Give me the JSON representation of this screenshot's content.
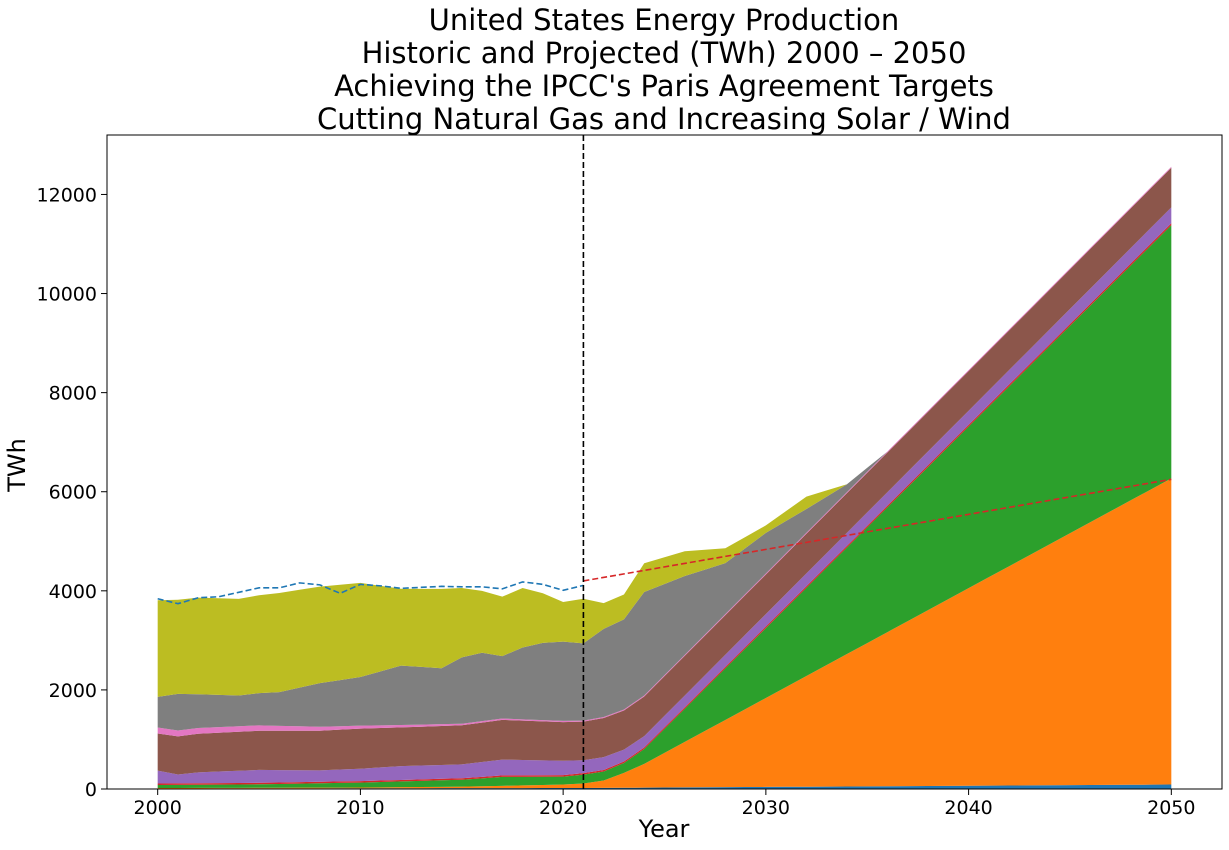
{
  "chart_data": {
    "type": "area",
    "title_lines": [
      "United States Energy Production",
      "Historic and Projected (TWh) 2000 – 2050",
      "Achieving the IPCC's Paris Agreement Targets",
      "Cutting Natural Gas and Increasing Solar / Wind"
    ],
    "xlabel": "Year",
    "ylabel": "TWh",
    "xlim": [
      1997.5,
      2052.5
    ],
    "ylim": [
      0,
      13200
    ],
    "xticks": [
      2000,
      2010,
      2020,
      2030,
      2040,
      2050
    ],
    "yticks": [
      0,
      2000,
      4000,
      6000,
      8000,
      10000,
      12000
    ],
    "grid": false,
    "legend": "none",
    "vline_x": 2021,
    "stacked_series": [
      {
        "color": "#1f77b4",
        "points": [
          [
            2000,
            10
          ],
          [
            2021,
            20
          ],
          [
            2050,
            90
          ]
        ]
      },
      {
        "color": "#ff7f0e",
        "points": [
          [
            2000,
            10
          ],
          [
            2010,
            15
          ],
          [
            2015,
            30
          ],
          [
            2020,
            70
          ],
          [
            2021,
            90
          ],
          [
            2022,
            150
          ],
          [
            2023,
            300
          ],
          [
            2024,
            480
          ],
          [
            2050,
            6180
          ]
        ]
      },
      {
        "color": "#2ca02c",
        "points": [
          [
            2000,
            60
          ],
          [
            2005,
            70
          ],
          [
            2010,
            100
          ],
          [
            2015,
            140
          ],
          [
            2017,
            180
          ],
          [
            2020,
            160
          ],
          [
            2021,
            180
          ],
          [
            2022,
            180
          ],
          [
            2023,
            200
          ],
          [
            2024,
            300
          ],
          [
            2050,
            5110
          ]
        ]
      },
      {
        "color": "#d62728",
        "points": [
          [
            2000,
            30
          ],
          [
            2010,
            30
          ],
          [
            2020,
            30
          ],
          [
            2021,
            30
          ],
          [
            2024,
            30
          ],
          [
            2050,
            40
          ]
        ]
      },
      {
        "color": "#9467bd",
        "points": [
          [
            2000,
            260
          ],
          [
            2001,
            180
          ],
          [
            2002,
            220
          ],
          [
            2005,
            260
          ],
          [
            2008,
            230
          ],
          [
            2010,
            250
          ],
          [
            2012,
            280
          ],
          [
            2015,
            280
          ],
          [
            2017,
            320
          ],
          [
            2020,
            290
          ],
          [
            2021,
            260
          ],
          [
            2022,
            260
          ],
          [
            2023,
            240
          ],
          [
            2024,
            230
          ],
          [
            2050,
            320
          ]
        ]
      },
      {
        "color": "#8c564b",
        "points": [
          [
            2000,
            750
          ],
          [
            2001,
            770
          ],
          [
            2002,
            780
          ],
          [
            2005,
            790
          ],
          [
            2008,
            800
          ],
          [
            2010,
            810
          ],
          [
            2012,
            780
          ],
          [
            2015,
            790
          ],
          [
            2017,
            800
          ],
          [
            2020,
            780
          ],
          [
            2021,
            780
          ],
          [
            2022,
            790
          ],
          [
            2023,
            790
          ],
          [
            2024,
            800
          ],
          [
            2050,
            800
          ]
        ]
      },
      {
        "color": "#e377c2",
        "points": [
          [
            2000,
            120
          ],
          [
            2005,
            110
          ],
          [
            2010,
            60
          ],
          [
            2015,
            30
          ],
          [
            2020,
            25
          ],
          [
            2021,
            20
          ],
          [
            2024,
            20
          ],
          [
            2050,
            20
          ]
        ]
      },
      {
        "color": "#7f7f7f",
        "points": [
          [
            2000,
            620
          ],
          [
            2001,
            740
          ],
          [
            2002,
            680
          ],
          [
            2004,
            620
          ],
          [
            2006,
            680
          ],
          [
            2008,
            880
          ],
          [
            2010,
            980
          ],
          [
            2012,
            1200
          ],
          [
            2014,
            1130
          ],
          [
            2015,
            1340
          ],
          [
            2016,
            1380
          ],
          [
            2017,
            1260
          ],
          [
            2018,
            1450
          ],
          [
            2019,
            1560
          ],
          [
            2020,
            1600
          ],
          [
            2021,
            1560
          ],
          [
            2022,
            1780
          ],
          [
            2023,
            1820
          ],
          [
            2024,
            2090
          ],
          [
            2026,
            1590
          ],
          [
            2028,
            1030
          ],
          [
            2030,
            820
          ],
          [
            2032,
            480
          ],
          [
            2034,
            160
          ],
          [
            2036,
            0
          ],
          [
            2050,
            0
          ]
        ]
      },
      {
        "color": "#bcbd22",
        "points": [
          [
            2000,
            1950
          ],
          [
            2001,
            1900
          ],
          [
            2002,
            1950
          ],
          [
            2004,
            1950
          ],
          [
            2006,
            2000
          ],
          [
            2008,
            1950
          ],
          [
            2010,
            1900
          ],
          [
            2012,
            1550
          ],
          [
            2014,
            1600
          ],
          [
            2015,
            1400
          ],
          [
            2016,
            1250
          ],
          [
            2017,
            1200
          ],
          [
            2018,
            1200
          ],
          [
            2019,
            1000
          ],
          [
            2020,
            800
          ],
          [
            2021,
            900
          ],
          [
            2022,
            520
          ],
          [
            2023,
            500
          ],
          [
            2024,
            580
          ],
          [
            2026,
            500
          ],
          [
            2028,
            300
          ],
          [
            2030,
            150
          ],
          [
            2032,
            250
          ],
          [
            2034,
            0
          ],
          [
            2050,
            0
          ]
        ]
      },
      {
        "color": "#17becf",
        "points": [
          [
            2000,
            0
          ],
          [
            2050,
            0
          ]
        ]
      }
    ],
    "total_line": {
      "color": "#1f77b4",
      "points": [
        [
          2000,
          3840
        ],
        [
          2001,
          3740
        ],
        [
          2002,
          3860
        ],
        [
          2003,
          3880
        ],
        [
          2004,
          3970
        ],
        [
          2005,
          4060
        ],
        [
          2006,
          4060
        ],
        [
          2007,
          4160
        ],
        [
          2008,
          4120
        ],
        [
          2009,
          3950
        ],
        [
          2010,
          4130
        ],
        [
          2011,
          4100
        ],
        [
          2012,
          4050
        ],
        [
          2013,
          4070
        ],
        [
          2014,
          4090
        ],
        [
          2015,
          4080
        ],
        [
          2016,
          4080
        ],
        [
          2017,
          4040
        ],
        [
          2018,
          4180
        ],
        [
          2019,
          4130
        ],
        [
          2020,
          4010
        ],
        [
          2021,
          4110
        ]
      ]
    },
    "target_line": {
      "color": "#d62728",
      "points": [
        [
          2021,
          4200
        ],
        [
          2050,
          6250
        ]
      ]
    },
    "vline_color": "#000000"
  }
}
